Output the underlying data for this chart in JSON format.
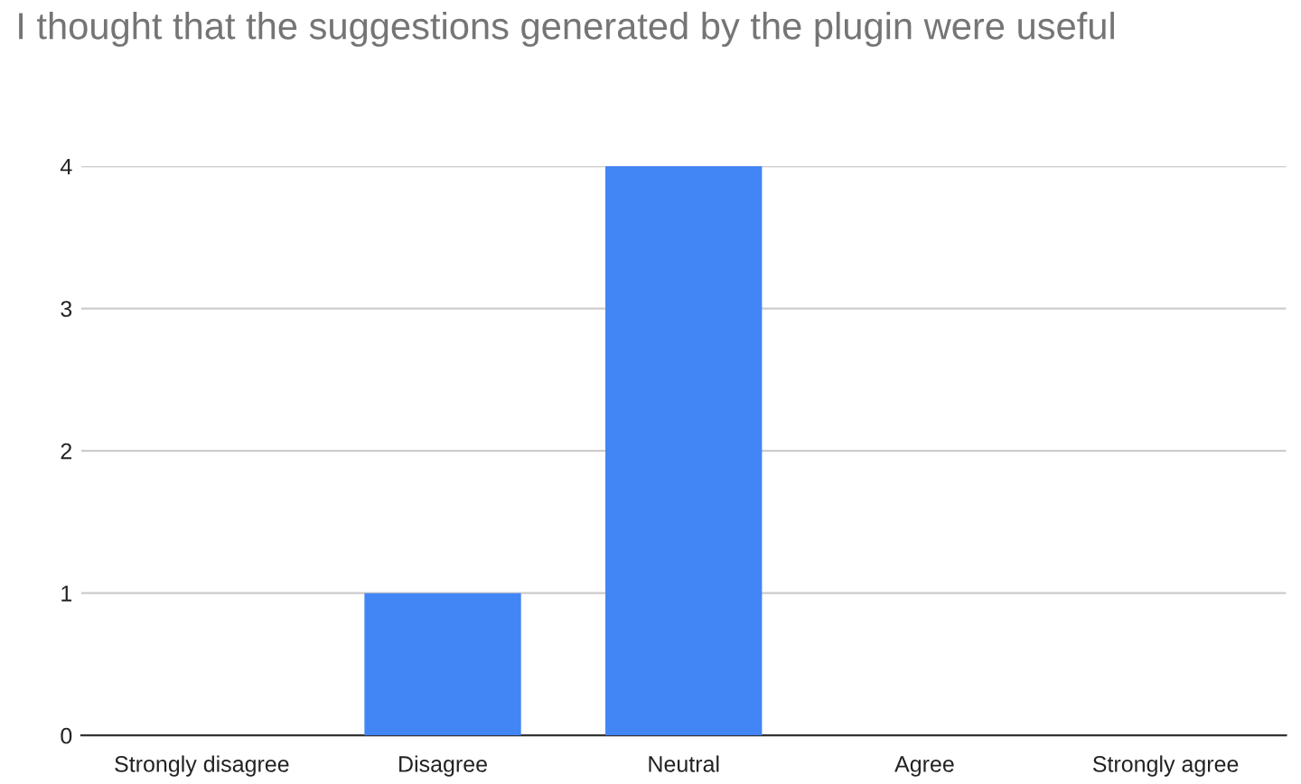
{
  "chart_data": {
    "type": "bar",
    "title": "I thought that the suggestions generated by the plugin were useful",
    "categories": [
      "Strongly disagree",
      "Disagree",
      "Neutral",
      "Agree",
      "Strongly agree"
    ],
    "values": [
      0,
      1,
      4,
      0,
      0
    ],
    "color": "#4285f4",
    "ylim": [
      0,
      4
    ],
    "yticks": [
      0,
      1,
      2,
      3,
      4
    ],
    "grid": "y",
    "legend": false
  }
}
